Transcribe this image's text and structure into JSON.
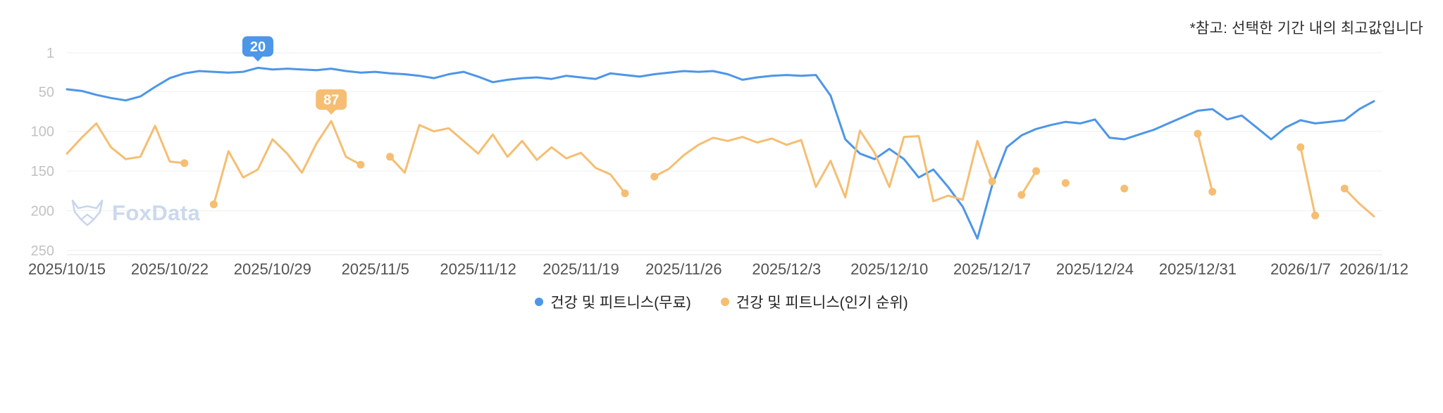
{
  "note": "*참고: 선택한 기간 내의 최고값입니다",
  "watermark": {
    "text": "FoxData"
  },
  "chart_data": {
    "type": "line",
    "title": "",
    "grid": true,
    "legend_position": "bottom",
    "y_axis": {
      "inverted": true,
      "min": 1,
      "max": 250,
      "ticks": [
        1,
        50,
        100,
        150,
        200,
        250
      ]
    },
    "x_axis": {
      "span_days": 89,
      "ticks": [
        {
          "label": "2025/10/15",
          "day": 0
        },
        {
          "label": "2025/10/22",
          "day": 7
        },
        {
          "label": "2025/10/29",
          "day": 14
        },
        {
          "label": "2025/11/5",
          "day": 21
        },
        {
          "label": "2025/11/12",
          "day": 28
        },
        {
          "label": "2025/11/19",
          "day": 35
        },
        {
          "label": "2025/11/26",
          "day": 42
        },
        {
          "label": "2025/12/3",
          "day": 49
        },
        {
          "label": "2025/12/10",
          "day": 56
        },
        {
          "label": "2025/12/17",
          "day": 63
        },
        {
          "label": "2025/12/24",
          "day": 70
        },
        {
          "label": "2025/12/31",
          "day": 77
        },
        {
          "label": "2026/1/7",
          "day": 84
        },
        {
          "label": "2026/1/12",
          "day": 89
        }
      ]
    },
    "series": [
      {
        "name": "건강 및 피트니스(무료)",
        "color": "#4d96e8",
        "best_label": "20",
        "best_value": 20,
        "gap_markers": false,
        "values": [
          47,
          49,
          54,
          58,
          61,
          56,
          44,
          33,
          27,
          24,
          25,
          26,
          25,
          20,
          22,
          21,
          22,
          23,
          21,
          24,
          26,
          25,
          27,
          28,
          30,
          33,
          28,
          25,
          31,
          38,
          35,
          33,
          32,
          34,
          30,
          32,
          34,
          27,
          29,
          31,
          28,
          26,
          24,
          25,
          24,
          28,
          35,
          32,
          30,
          29,
          30,
          29,
          55,
          110,
          128,
          135,
          122,
          135,
          158,
          148,
          170,
          195,
          235,
          168,
          120,
          105,
          97,
          92,
          88,
          90,
          85,
          108,
          110,
          104,
          98,
          90,
          82,
          74,
          72,
          85,
          80,
          95,
          110,
          95,
          86,
          90,
          88,
          86,
          72,
          62
        ]
      },
      {
        "name": "건강 및 피트니스(인기 순위)",
        "color": "#f5be72",
        "best_label": "87",
        "best_value": 87,
        "gap_markers": true,
        "values": [
          128,
          108,
          90,
          120,
          135,
          132,
          93,
          138,
          140,
          null,
          192,
          125,
          158,
          148,
          110,
          128,
          152,
          115,
          87,
          132,
          142,
          null,
          132,
          152,
          92,
          100,
          96,
          112,
          128,
          104,
          132,
          112,
          136,
          120,
          134,
          127,
          146,
          154,
          178,
          null,
          157,
          147,
          130,
          117,
          108,
          112,
          107,
          114,
          109,
          117,
          111,
          170,
          137,
          183,
          99,
          127,
          170,
          107,
          106,
          188,
          181,
          186,
          112,
          163,
          null,
          180,
          150,
          null,
          165,
          null,
          null,
          null,
          172,
          null,
          null,
          null,
          null,
          103,
          176,
          null,
          null,
          null,
          null,
          null,
          120,
          206,
          null,
          172,
          191,
          207
        ]
      }
    ]
  }
}
